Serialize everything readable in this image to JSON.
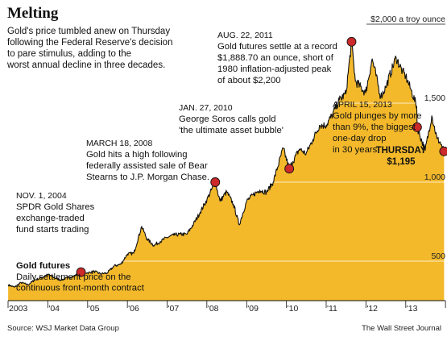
{
  "chart_data": {
    "type": "area",
    "title": "Melting",
    "subtitle": [
      "Gold's price tumbled anew on Thursday",
      "following the Federal Reserve's decision",
      "to pare stimulus, adding to the",
      "worst annual decline in three decades."
    ],
    "x_tick_labels": [
      "2003",
      "'04",
      "'05",
      "'06",
      "'07",
      "'08",
      "'09",
      "'10",
      "'11",
      "'12",
      "'13"
    ],
    "xlim": [
      "2003-01-01",
      "2013-12-31"
    ],
    "y_tick_labels": [
      "500",
      "1,000",
      "1,500",
      "$2,000 a troy ounce"
    ],
    "y_ticks": [
      500,
      1000,
      1500,
      2000
    ],
    "ylim": [
      250,
      2000
    ],
    "series": [
      {
        "name": "Gold futures",
        "description": [
          "Daily settlement price on the",
          "continuous front-month contract"
        ],
        "x": [
          "2003-01-02",
          "2003-03-01",
          "2003-05-01",
          "2003-07-01",
          "2003-09-01",
          "2003-11-01",
          "2004-01-02",
          "2004-03-01",
          "2004-05-01",
          "2004-07-01",
          "2004-09-01",
          "2004-11-01",
          "2005-01-01",
          "2005-03-01",
          "2005-05-01",
          "2005-07-01",
          "2005-09-01",
          "2005-11-01",
          "2006-01-01",
          "2006-03-01",
          "2006-05-12",
          "2006-07-01",
          "2006-09-01",
          "2006-11-01",
          "2007-01-01",
          "2007-03-01",
          "2007-05-01",
          "2007-07-01",
          "2007-09-01",
          "2007-11-01",
          "2008-01-02",
          "2008-03-18",
          "2008-05-01",
          "2008-07-01",
          "2008-09-01",
          "2008-10-24",
          "2009-01-01",
          "2009-03-01",
          "2009-05-01",
          "2009-07-01",
          "2009-09-01",
          "2009-12-02",
          "2010-01-27",
          "2010-03-01",
          "2010-05-01",
          "2010-07-01",
          "2010-09-01",
          "2010-11-01",
          "2011-01-01",
          "2011-03-01",
          "2011-05-01",
          "2011-07-01",
          "2011-08-22",
          "2011-09-26",
          "2011-12-29",
          "2012-02-28",
          "2012-05-16",
          "2012-07-01",
          "2012-10-04",
          "2012-12-01",
          "2013-01-01",
          "2013-02-20",
          "2013-04-12",
          "2013-04-15",
          "2013-06-28",
          "2013-08-28",
          "2013-10-15",
          "2013-11-15",
          "2013-12-19"
        ],
        "values": [
          350,
          335,
          365,
          350,
          380,
          395,
          415,
          395,
          380,
          395,
          405,
          435,
          425,
          435,
          420,
          425,
          470,
          480,
          545,
          550,
          720,
          640,
          600,
          625,
          650,
          665,
          670,
          670,
          735,
          810,
          890,
          1000,
          880,
          940,
          860,
          730,
          880,
          920,
          950,
          935,
          1000,
          1215,
          1085,
          1130,
          1210,
          1180,
          1270,
          1360,
          1360,
          1430,
          1520,
          1560,
          1888.7,
          1640,
          1565,
          1780,
          1540,
          1600,
          1790,
          1700,
          1670,
          1580,
          1480,
          1348,
          1200,
          1420,
          1275,
          1250,
          1195
        ]
      }
    ],
    "annotations": [
      {
        "date_label": "NOV. 1, 2004",
        "text": [
          "SPDR Gold Shares",
          "exchange-traded",
          "fund starts trading"
        ],
        "x": "2004-11-01",
        "y": 430
      },
      {
        "date_label": "MARCH 18, 2008",
        "text": [
          "Gold hits a high following",
          "federally assisted sale of Bear",
          "Stearns to J.P. Morgan Chase."
        ],
        "x": "2008-03-18",
        "y": 1000
      },
      {
        "date_label": "JAN. 27, 2010",
        "text": [
          "George Soros calls gold",
          "'the ultimate asset bubble'"
        ],
        "x": "2010-01-27",
        "y": 1085
      },
      {
        "date_label": "AUG. 22, 2011",
        "text": [
          "Gold futures settle at a record",
          "$1,888.70 an ounce, short of",
          "1980 inflation-adjusted peak",
          "of about $2,200"
        ],
        "x": "2011-08-22",
        "y": 1888.7
      },
      {
        "date_label": "APRIL 15, 2013",
        "text": [
          "Gold plunges by more",
          "than 9%, the biggest",
          "one-day drop",
          "in 30 years"
        ],
        "x": "2013-04-15",
        "y": 1348
      },
      {
        "date_label": "",
        "text": [
          "THURSDAY",
          "$1,195"
        ],
        "x": "2013-12-19",
        "y": 1195
      }
    ],
    "grid": "horizontal",
    "colors": {
      "fill": "#f3b92b",
      "line": "#111111",
      "marker": "#cc2a2a",
      "grid": "#ffffff"
    }
  },
  "footer": {
    "source": "Source: WSJ Market Data Group",
    "credit": "The Wall Street Journal"
  }
}
